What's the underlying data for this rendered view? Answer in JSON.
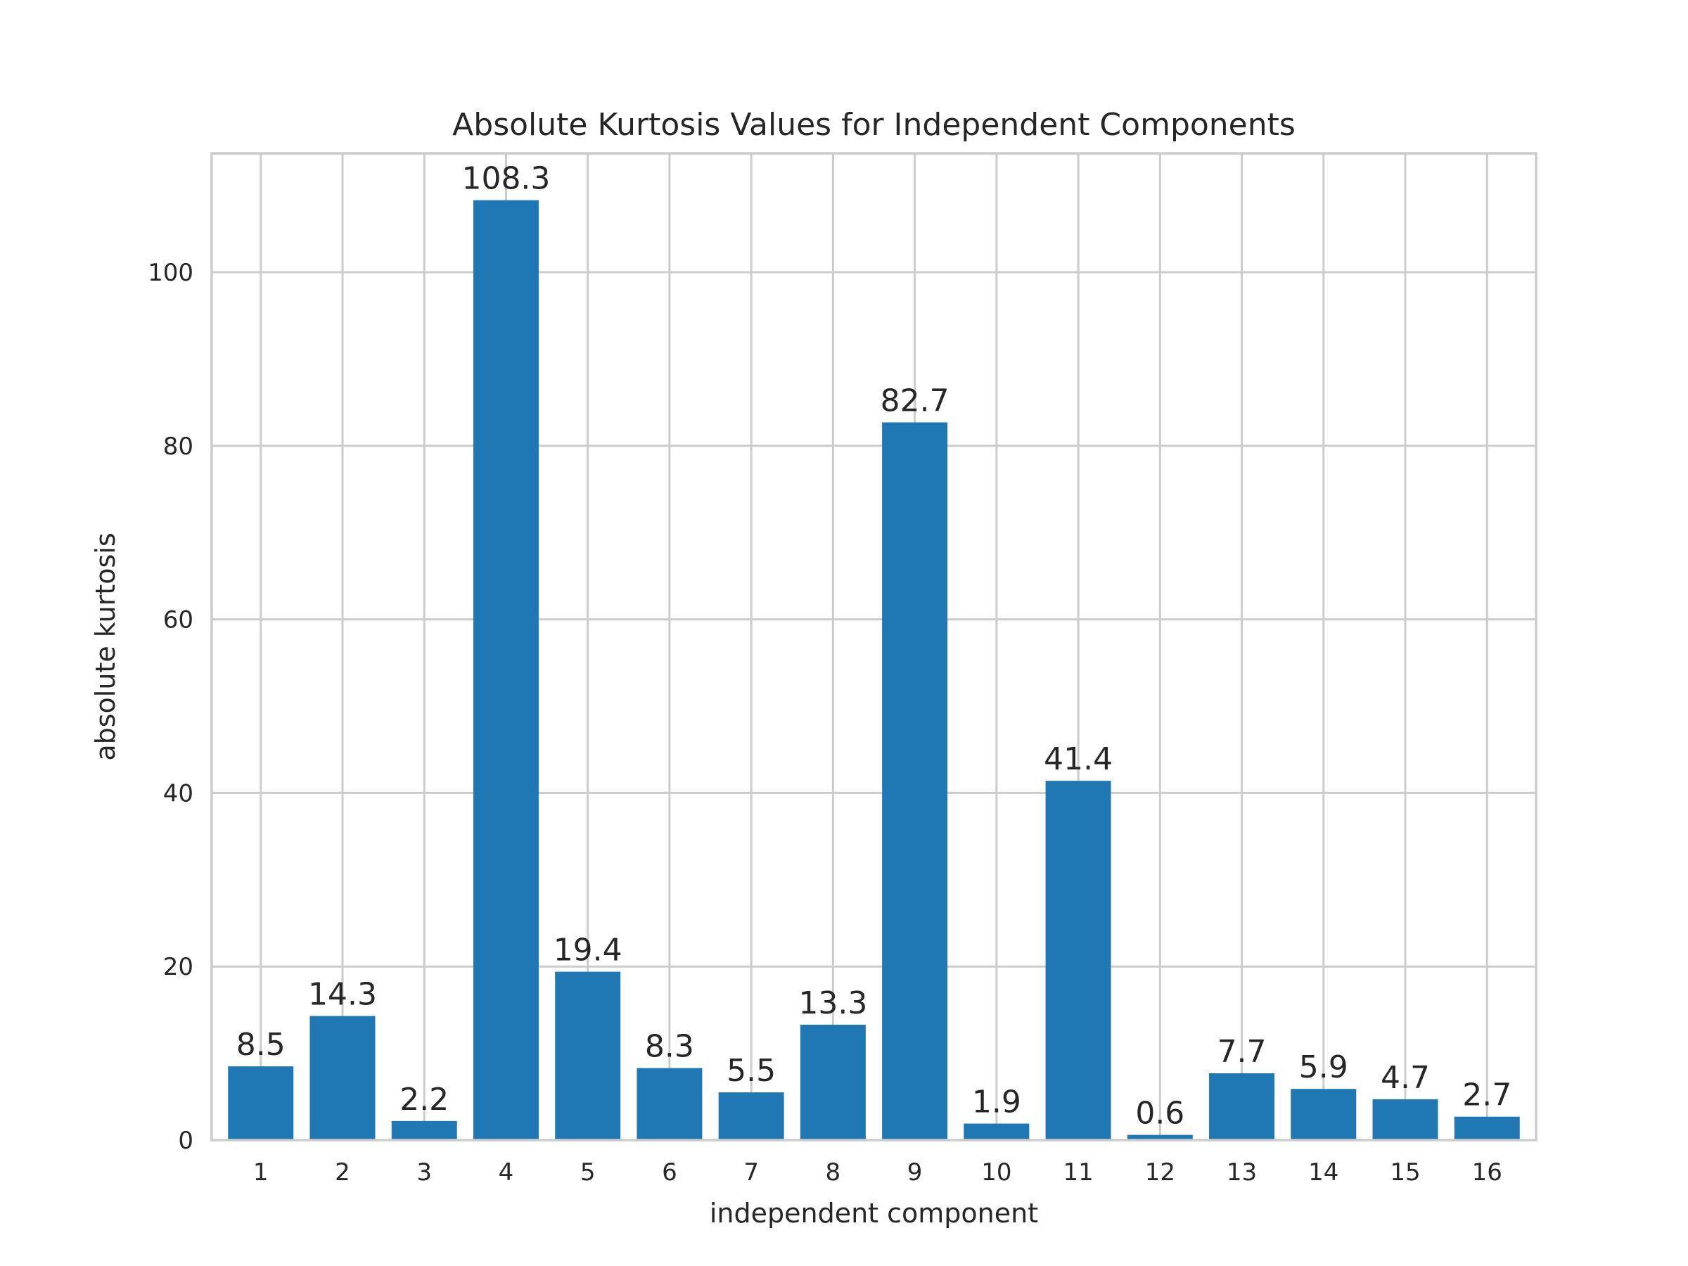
{
  "chart_data": {
    "type": "bar",
    "title": "Absolute Kurtosis Values for Independent Components",
    "xlabel": "independent component",
    "ylabel": "absolute kurtosis",
    "categories": [
      "1",
      "2",
      "3",
      "4",
      "5",
      "6",
      "7",
      "8",
      "9",
      "10",
      "11",
      "12",
      "13",
      "14",
      "15",
      "16"
    ],
    "values": [
      8.5,
      14.3,
      2.2,
      108.3,
      19.4,
      8.3,
      5.5,
      13.3,
      82.7,
      1.9,
      41.4,
      0.6,
      7.7,
      5.9,
      4.7,
      2.7
    ],
    "data_labels": [
      "8.5",
      "14.3",
      "2.2",
      "108.3",
      "19.4",
      "8.3",
      "5.5",
      "13.3",
      "82.7",
      "1.9",
      "41.4",
      "0.6",
      "7.7",
      "5.9",
      "4.7",
      "2.7"
    ],
    "yticks": [
      0,
      20,
      40,
      60,
      80,
      100
    ],
    "ytick_labels": [
      "0",
      "20",
      "40",
      "60",
      "80",
      "100"
    ],
    "ylim": [
      0,
      113.7
    ],
    "xlim": [
      0.4,
      16.6
    ],
    "grid": true,
    "bar_color": "#1f77b4",
    "grid_color": "#cccccc",
    "text_color": "#262626"
  }
}
